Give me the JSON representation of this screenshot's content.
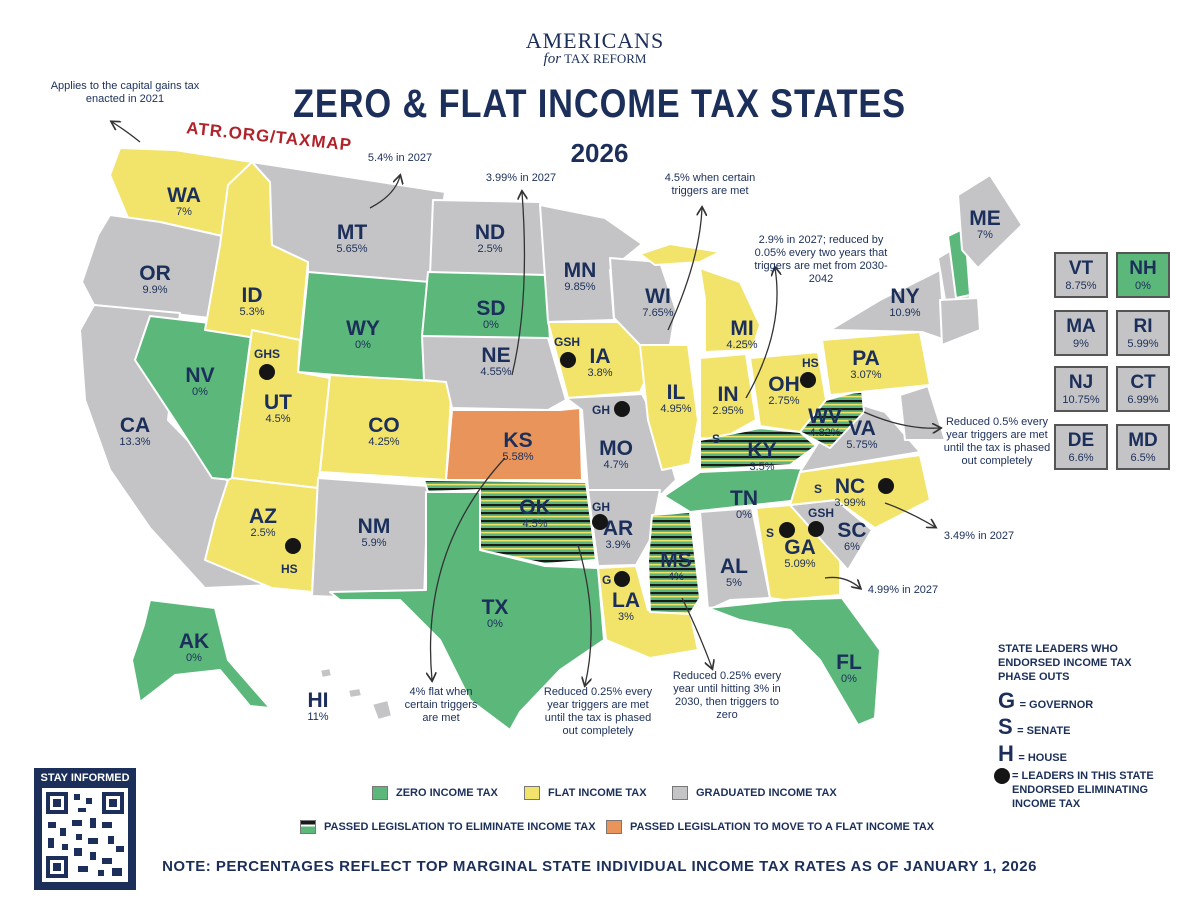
{
  "brand": {
    "line1": "AMERICANS",
    "line2a": "for",
    "line2b": "TAX REFORM"
  },
  "title": "ZERO & FLAT INCOME TAX STATES",
  "year": "2026",
  "url": "ATR.ORG/TAXMAP",
  "colors": {
    "zero": "#5bb77a",
    "flat": "#f2e36b",
    "graduated": "#c4c4c7",
    "to_flat": "#e9945a",
    "navy": "#1b2f5a"
  },
  "states": [
    {
      "abbr": "WA",
      "rate": "7%",
      "category": "flat"
    },
    {
      "abbr": "OR",
      "rate": "9.9%",
      "category": "graduated"
    },
    {
      "abbr": "CA",
      "rate": "13.3%",
      "category": "graduated"
    },
    {
      "abbr": "NV",
      "rate": "0%",
      "category": "zero"
    },
    {
      "abbr": "ID",
      "rate": "5.3%",
      "category": "flat"
    },
    {
      "abbr": "MT",
      "rate": "5.65%",
      "category": "graduated"
    },
    {
      "abbr": "WY",
      "rate": "0%",
      "category": "zero"
    },
    {
      "abbr": "UT",
      "rate": "4.5%",
      "category": "flat",
      "leaders": "GHS"
    },
    {
      "abbr": "AZ",
      "rate": "2.5%",
      "category": "flat",
      "leaders": "HS"
    },
    {
      "abbr": "CO",
      "rate": "4.25%",
      "category": "flat"
    },
    {
      "abbr": "NM",
      "rate": "5.9%",
      "category": "graduated"
    },
    {
      "abbr": "ND",
      "rate": "2.5%",
      "category": "graduated"
    },
    {
      "abbr": "SD",
      "rate": "0%",
      "category": "zero"
    },
    {
      "abbr": "NE",
      "rate": "4.55%",
      "category": "graduated"
    },
    {
      "abbr": "KS",
      "rate": "5.58%",
      "category": "to_flat"
    },
    {
      "abbr": "OK",
      "rate": "4.5%",
      "category": "eliminate"
    },
    {
      "abbr": "TX",
      "rate": "0%",
      "category": "zero"
    },
    {
      "abbr": "MN",
      "rate": "9.85%",
      "category": "graduated"
    },
    {
      "abbr": "IA",
      "rate": "3.8%",
      "category": "flat",
      "leaders": "GSH"
    },
    {
      "abbr": "MO",
      "rate": "4.7%",
      "category": "graduated",
      "leaders": "GH"
    },
    {
      "abbr": "AR",
      "rate": "3.9%",
      "category": "graduated",
      "leaders": "GH"
    },
    {
      "abbr": "LA",
      "rate": "3%",
      "category": "flat",
      "leaders": "G"
    },
    {
      "abbr": "WI",
      "rate": "7.65%",
      "category": "graduated"
    },
    {
      "abbr": "IL",
      "rate": "4.95%",
      "category": "flat"
    },
    {
      "abbr": "MI",
      "rate": "4.25%",
      "category": "flat"
    },
    {
      "abbr": "IN",
      "rate": "2.95%",
      "category": "flat",
      "leaders": "S"
    },
    {
      "abbr": "OH",
      "rate": "2.75%",
      "category": "flat",
      "leaders": "HS"
    },
    {
      "abbr": "KY",
      "rate": "3.5%",
      "category": "eliminate"
    },
    {
      "abbr": "TN",
      "rate": "0%",
      "category": "zero"
    },
    {
      "abbr": "MS",
      "rate": "4%",
      "category": "eliminate"
    },
    {
      "abbr": "AL",
      "rate": "5%",
      "category": "graduated"
    },
    {
      "abbr": "GA",
      "rate": "5.09%",
      "category": "flat",
      "leaders": "S"
    },
    {
      "abbr": "FL",
      "rate": "0%",
      "category": "zero"
    },
    {
      "abbr": "SC",
      "rate": "6%",
      "category": "graduated",
      "leaders": "GSH"
    },
    {
      "abbr": "NC",
      "rate": "3.99%",
      "category": "flat",
      "leaders": "S"
    },
    {
      "abbr": "VA",
      "rate": "5.75%",
      "category": "graduated"
    },
    {
      "abbr": "WV",
      "rate": "4.82%",
      "category": "eliminate"
    },
    {
      "abbr": "PA",
      "rate": "3.07%",
      "category": "flat"
    },
    {
      "abbr": "NY",
      "rate": "10.9%",
      "category": "graduated"
    },
    {
      "abbr": "ME",
      "rate": "7%",
      "category": "graduated"
    },
    {
      "abbr": "AK",
      "rate": "0%",
      "category": "zero"
    },
    {
      "abbr": "HI",
      "rate": "11%",
      "category": "graduated"
    }
  ],
  "side_states": [
    {
      "abbr": "VT",
      "rate": "8.75%",
      "category": "graduated"
    },
    {
      "abbr": "NH",
      "rate": "0%",
      "category": "zero"
    },
    {
      "abbr": "MA",
      "rate": "9%",
      "category": "graduated"
    },
    {
      "abbr": "RI",
      "rate": "5.99%",
      "category": "graduated"
    },
    {
      "abbr": "NJ",
      "rate": "10.75%",
      "category": "graduated"
    },
    {
      "abbr": "CT",
      "rate": "6.99%",
      "category": "graduated"
    },
    {
      "abbr": "DE",
      "rate": "6.6%",
      "category": "graduated"
    },
    {
      "abbr": "MD",
      "rate": "6.5%",
      "category": "graduated"
    }
  ],
  "notes": {
    "wa": "Applies to the capital gains tax enacted in 2021",
    "mt": "5.4% in 2027",
    "ne": "3.99% in 2027",
    "mn": "4.5% when certain triggers are met",
    "in": "2.9% in 2027; reduced by 0.05% every two years that triggers are met from 2030-2042",
    "wv": "Reduced 0.5% every year triggers are met until the tax is phased out completely",
    "nc": "3.49% in 2027",
    "ga": "4.99% in 2027",
    "ks": "4% flat when certain triggers are met",
    "ok": "Reduced 0.25% every year triggers are met until the tax is phased out completely",
    "ms": "Reduced 0.25% every year until hitting 3% in 2030, then triggers to zero"
  },
  "legend": {
    "zero": "ZERO INCOME TAX",
    "flat": "FLAT INCOME TAX",
    "graduated": "GRADUATED INCOME TAX",
    "eliminate": "PASSED LEGISLATION TO ELIMINATE INCOME TAX",
    "to_flat": "PASSED LEGISLATION TO MOVE TO A FLAT INCOME TAX"
  },
  "leaders_key": {
    "title": "STATE LEADERS WHO ENDORSED INCOME TAX PHASE OUTS",
    "g_letter": "G",
    "g": "= GOVERNOR",
    "s_letter": "S",
    "s": "= SENATE",
    "h_letter": "H",
    "h": "= HOUSE",
    "dot": "= LEADERS IN THIS STATE ENDORSED ELIMINATING INCOME TAX"
  },
  "qr_label": "STAY INFORMED",
  "footnote": "NOTE: PERCENTAGES REFLECT TOP MARGINAL STATE INDIVIDUAL INCOME TAX RATES AS OF JANUARY 1, 2026"
}
